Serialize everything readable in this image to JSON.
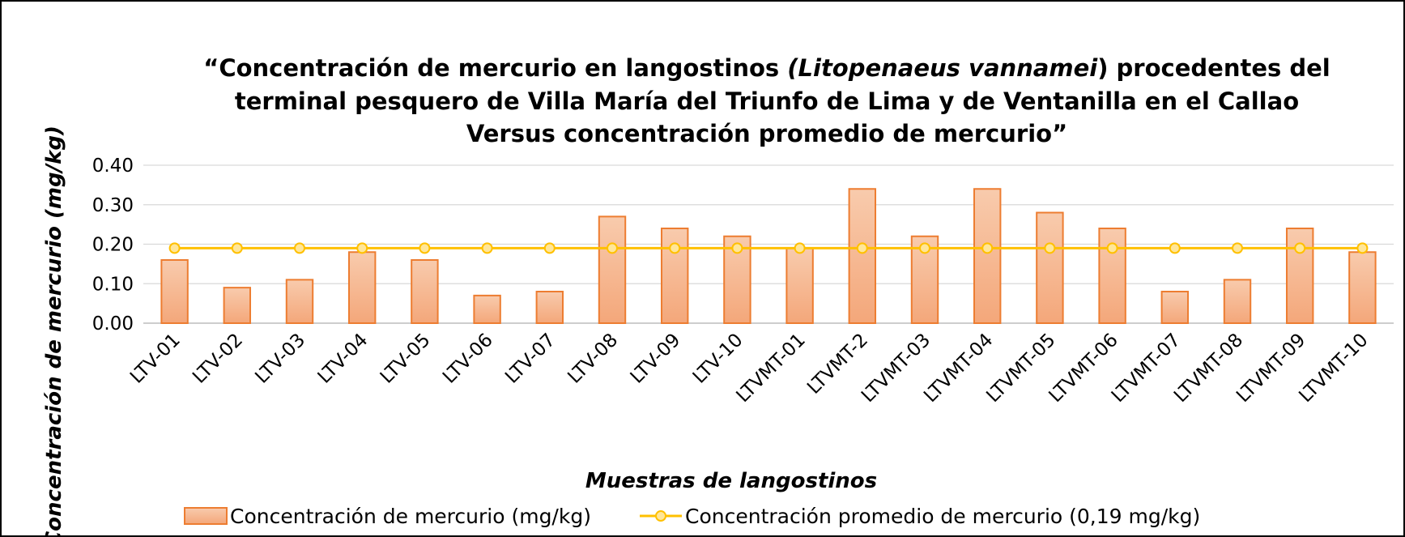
{
  "chart_data": {
    "type": "bar",
    "title": [
      [
        "“Concentración de mercurio en  langostinos ",
        "(Litopenaeus vannamei",
        ")  procedentes del"
      ],
      [
        "terminal pesquero de Villa María del Triunfo de Lima  y de Ventanilla en el Callao"
      ],
      [
        "Versus concentración promedio de mercurio”"
      ]
    ],
    "x_label": "Muestras de langostinos",
    "y_label": "Concentración de mercurio (mg/kg)",
    "categories": [
      "LTV-01",
      "LTV-02",
      "LTV-03",
      "LTV-04",
      "LTV-05",
      "LTV-06",
      "LTV-07",
      "LTV-08",
      "LTV-09",
      "LTV-10",
      "LTVMT-01",
      "LTVMT-2",
      "LTVMT-03",
      "LTVMT-04",
      "LTVMT-05",
      "LTVMT-06",
      "LTVMT-07",
      "LTVMT-08",
      "LTVMT-09",
      "LTVMT-10"
    ],
    "series": [
      {
        "name": "Concentración de mercurio (mg/kg)",
        "type": "bar",
        "color": "#f4b183",
        "edge_color": "#ed7d31",
        "values": [
          0.16,
          0.09,
          0.11,
          0.18,
          0.16,
          0.07,
          0.08,
          0.27,
          0.24,
          0.22,
          0.19,
          0.34,
          0.22,
          0.34,
          0.28,
          0.24,
          0.08,
          0.11,
          0.24,
          0.18
        ]
      },
      {
        "name": "Concentración promedio de mercurio (0,19 mg/kg)",
        "type": "line",
        "color": "#ffc000",
        "marker_color": "#ffe699",
        "values": [
          0.19,
          0.19,
          0.19,
          0.19,
          0.19,
          0.19,
          0.19,
          0.19,
          0.19,
          0.19,
          0.19,
          0.19,
          0.19,
          0.19,
          0.19,
          0.19,
          0.19,
          0.19,
          0.19,
          0.19
        ]
      }
    ],
    "ylim": [
      0,
      0.4
    ],
    "yticks": [
      {
        "value": 0,
        "label": "0.00"
      },
      {
        "value": 0.1,
        "label": "0.10"
      },
      {
        "value": 0.2,
        "label": "0.20"
      },
      {
        "value": 0.3,
        "label": "0.30"
      },
      {
        "value": 0.4,
        "label": "0.40"
      }
    ],
    "grid": true,
    "legend": "bottom"
  }
}
